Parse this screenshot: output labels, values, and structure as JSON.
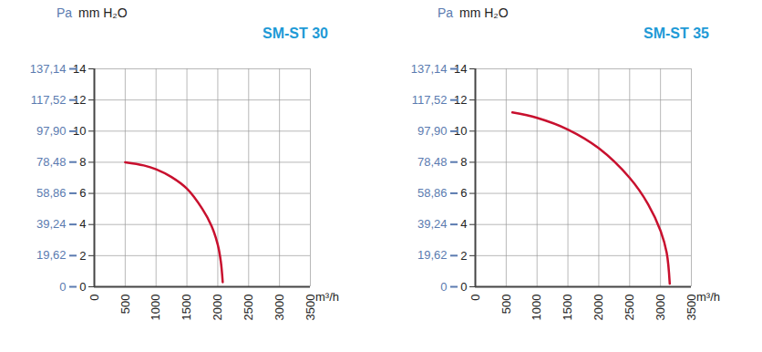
{
  "chart_data": [
    {
      "type": "line",
      "title": "SM-ST 30",
      "x_label": "m³/h",
      "y_label": "mm H₂O",
      "y2_label": "Pa",
      "xlim": [
        0,
        3500
      ],
      "xticks": [
        0,
        500,
        1000,
        1500,
        2000,
        2500,
        3000,
        3500
      ],
      "ylim": [
        0,
        14
      ],
      "yticks": [
        0,
        2,
        4,
        6,
        8,
        10,
        12,
        14
      ],
      "y2lim": [
        0,
        137.14
      ],
      "y2ticks": [
        0,
        {
          "value": 19.62,
          "label": "19,62"
        },
        {
          "value": 39.24,
          "label": "39,24"
        },
        {
          "value": 58.86,
          "label": "58,86"
        },
        {
          "value": 78.48,
          "label": "78,48"
        },
        {
          "value": 97.9,
          "label": "97,90"
        },
        {
          "value": 117.52,
          "label": "117,52"
        },
        {
          "value": 137.14,
          "label": "137,14"
        }
      ],
      "grid": true,
      "series": [
        {
          "color": "#c8102e",
          "x": [
            500,
            800,
            1000,
            1250,
            1500,
            1750,
            1900,
            2000,
            2050,
            2080
          ],
          "values": [
            8.0,
            7.8,
            7.55,
            7.05,
            6.3,
            5.0,
            3.9,
            2.7,
            1.6,
            0.3
          ]
        }
      ]
    },
    {
      "type": "line",
      "title": "SM-ST 35",
      "x_label": "m³/h",
      "y_label": "mm H₂O",
      "y2_label": "Pa",
      "xlim": [
        0,
        3500
      ],
      "xticks": [
        0,
        500,
        1000,
        1500,
        2000,
        2500,
        3000,
        3500
      ],
      "ylim": [
        0,
        14
      ],
      "yticks": [
        0,
        2,
        4,
        6,
        8,
        10,
        12,
        14
      ],
      "y2lim": [
        0,
        137.14
      ],
      "y2ticks": [
        0,
        {
          "value": 19.62,
          "label": "19,62"
        },
        {
          "value": 39.24,
          "label": "39,24"
        },
        {
          "value": 58.86,
          "label": "58,86"
        },
        {
          "value": 78.48,
          "label": "78,48"
        },
        {
          "value": 97.9,
          "label": "97,90"
        },
        {
          "value": 117.52,
          "label": "117,52"
        },
        {
          "value": 137.14,
          "label": "137,14"
        }
      ],
      "grid": true,
      "series": [
        {
          "color": "#c8102e",
          "x": [
            600,
            1000,
            1500,
            2000,
            2500,
            2800,
            3000,
            3100,
            3150
          ],
          "values": [
            11.2,
            10.85,
            10.1,
            8.9,
            7.0,
            5.3,
            3.6,
            2.2,
            0.2
          ]
        }
      ]
    }
  ]
}
